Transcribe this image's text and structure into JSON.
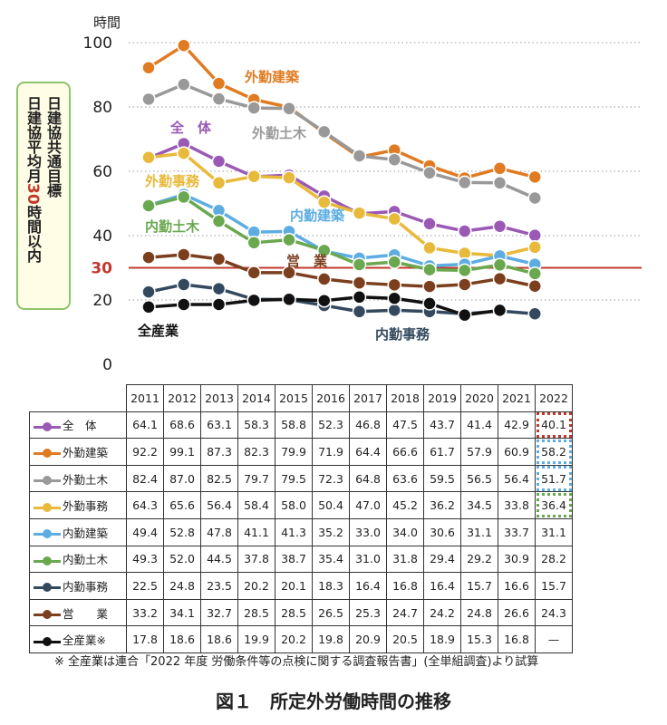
{
  "chart_data": {
    "type": "line",
    "ylabel": "時間",
    "ylim": [
      0,
      100
    ],
    "yticks": [
      "0",
      "20",
      "40",
      "60",
      "80",
      "100"
    ],
    "x": [
      "2011",
      "2012",
      "2013",
      "2014",
      "2015",
      "2016",
      "2017",
      "2018",
      "2019",
      "2020",
      "2021",
      "2022"
    ],
    "target_value": 30,
    "target_label": "30",
    "target_color": "#c0392b",
    "grid": "dotted",
    "series": [
      {
        "key": "zentai",
        "name": "全　体",
        "table_name": "全　体",
        "color": "#9b59b6",
        "values": [
          64.1,
          68.6,
          63.1,
          58.3,
          58.8,
          52.3,
          46.8,
          47.5,
          43.7,
          41.4,
          42.9,
          40.1
        ],
        "display": [
          "64.1",
          "68.6",
          "63.1",
          "58.3",
          "58.8",
          "52.3",
          "46.8",
          "47.5",
          "43.7",
          "41.4",
          "42.9",
          "40.1"
        ]
      },
      {
        "key": "gaikin_kenchiku",
        "name": "外勤建築",
        "table_name": "外勤建築",
        "color": "#e07b22",
        "values": [
          92.2,
          99.1,
          87.3,
          82.3,
          79.9,
          71.9,
          64.4,
          66.6,
          61.7,
          57.9,
          60.9,
          58.2
        ],
        "display": [
          "92.2",
          "99.1",
          "87.3",
          "82.3",
          "79.9",
          "71.9",
          "64.4",
          "66.6",
          "61.7",
          "57.9",
          "60.9",
          "58.2"
        ]
      },
      {
        "key": "gaikin_doboku",
        "name": "外勤土木",
        "table_name": "外勤土木",
        "color": "#999999",
        "values": [
          82.4,
          87.0,
          82.5,
          79.7,
          79.5,
          72.3,
          64.8,
          63.6,
          59.5,
          56.5,
          56.4,
          51.7
        ],
        "display": [
          "82.4",
          "87.0",
          "82.5",
          "79.7",
          "79.5",
          "72.3",
          "64.8",
          "63.6",
          "59.5",
          "56.5",
          "56.4",
          "51.7"
        ]
      },
      {
        "key": "gaikin_jimu",
        "name": "外勤事務",
        "table_name": "外勤事務",
        "color": "#e8b93a",
        "values": [
          64.3,
          65.6,
          56.4,
          58.4,
          58.0,
          50.4,
          47.0,
          45.2,
          36.2,
          34.5,
          33.8,
          36.4
        ],
        "display": [
          "64.3",
          "65.6",
          "56.4",
          "58.4",
          "58.0",
          "50.4",
          "47.0",
          "45.2",
          "36.2",
          "34.5",
          "33.8",
          "36.4"
        ]
      },
      {
        "key": "naikin_kenchiku",
        "name": "内勤建築",
        "table_name": "内勤建築",
        "color": "#5dade2",
        "values": [
          49.4,
          52.8,
          47.8,
          41.1,
          41.3,
          35.2,
          33.0,
          34.0,
          30.6,
          31.1,
          33.7,
          31.1
        ],
        "display": [
          "49.4",
          "52.8",
          "47.8",
          "41.1",
          "41.3",
          "35.2",
          "33.0",
          "34.0",
          "30.6",
          "31.1",
          "33.7",
          "31.1"
        ]
      },
      {
        "key": "naikin_doboku",
        "name": "内勤土木",
        "table_name": "内勤土木",
        "color": "#6aa84f",
        "values": [
          49.3,
          52.0,
          44.5,
          37.8,
          38.7,
          35.4,
          31.0,
          31.8,
          29.4,
          29.2,
          30.9,
          28.2
        ],
        "display": [
          "49.3",
          "52.0",
          "44.5",
          "37.8",
          "38.7",
          "35.4",
          "31.0",
          "31.8",
          "29.4",
          "29.2",
          "30.9",
          "28.2"
        ]
      },
      {
        "key": "naikin_jimu",
        "name": "内勤事務",
        "table_name": "内勤事務",
        "color": "#34495e",
        "values": [
          22.5,
          24.8,
          23.5,
          20.2,
          20.1,
          18.3,
          16.4,
          16.8,
          16.4,
          15.7,
          16.6,
          15.7
        ],
        "display": [
          "22.5",
          "24.8",
          "23.5",
          "20.2",
          "20.1",
          "18.3",
          "16.4",
          "16.8",
          "16.4",
          "15.7",
          "16.6",
          "15.7"
        ]
      },
      {
        "key": "eigyo",
        "name": "営　業",
        "table_name": "営　　業",
        "color": "#7b3f1e",
        "values": [
          33.2,
          34.1,
          32.7,
          28.5,
          28.5,
          26.5,
          25.3,
          24.7,
          24.2,
          24.8,
          26.6,
          24.3
        ],
        "display": [
          "33.2",
          "34.1",
          "32.7",
          "28.5",
          "28.5",
          "26.5",
          "25.3",
          "24.7",
          "24.2",
          "24.8",
          "26.6",
          "24.3"
        ]
      },
      {
        "key": "zensangyo",
        "name": "全産業",
        "table_name": "全産業※",
        "color": "#111111",
        "values": [
          17.8,
          18.6,
          18.6,
          19.9,
          20.2,
          19.8,
          20.9,
          20.5,
          18.9,
          15.3,
          16.8,
          null
        ],
        "display": [
          "17.8",
          "18.6",
          "18.6",
          "19.9",
          "20.2",
          "19.8",
          "20.9",
          "20.5",
          "18.9",
          "15.3",
          "16.8",
          "—"
        ]
      }
    ]
  },
  "target_note": {
    "col1": "日建協共通目標",
    "col2a": "日建協平均月",
    "col2b": "30",
    "col2c": "時間以内"
  },
  "footnote": "※ 全産業は連合「2022 年度 労働条件等の点検に関する調査報告書」(全単組調査)より試算",
  "caption": "図１　所定外労働時間の推移"
}
